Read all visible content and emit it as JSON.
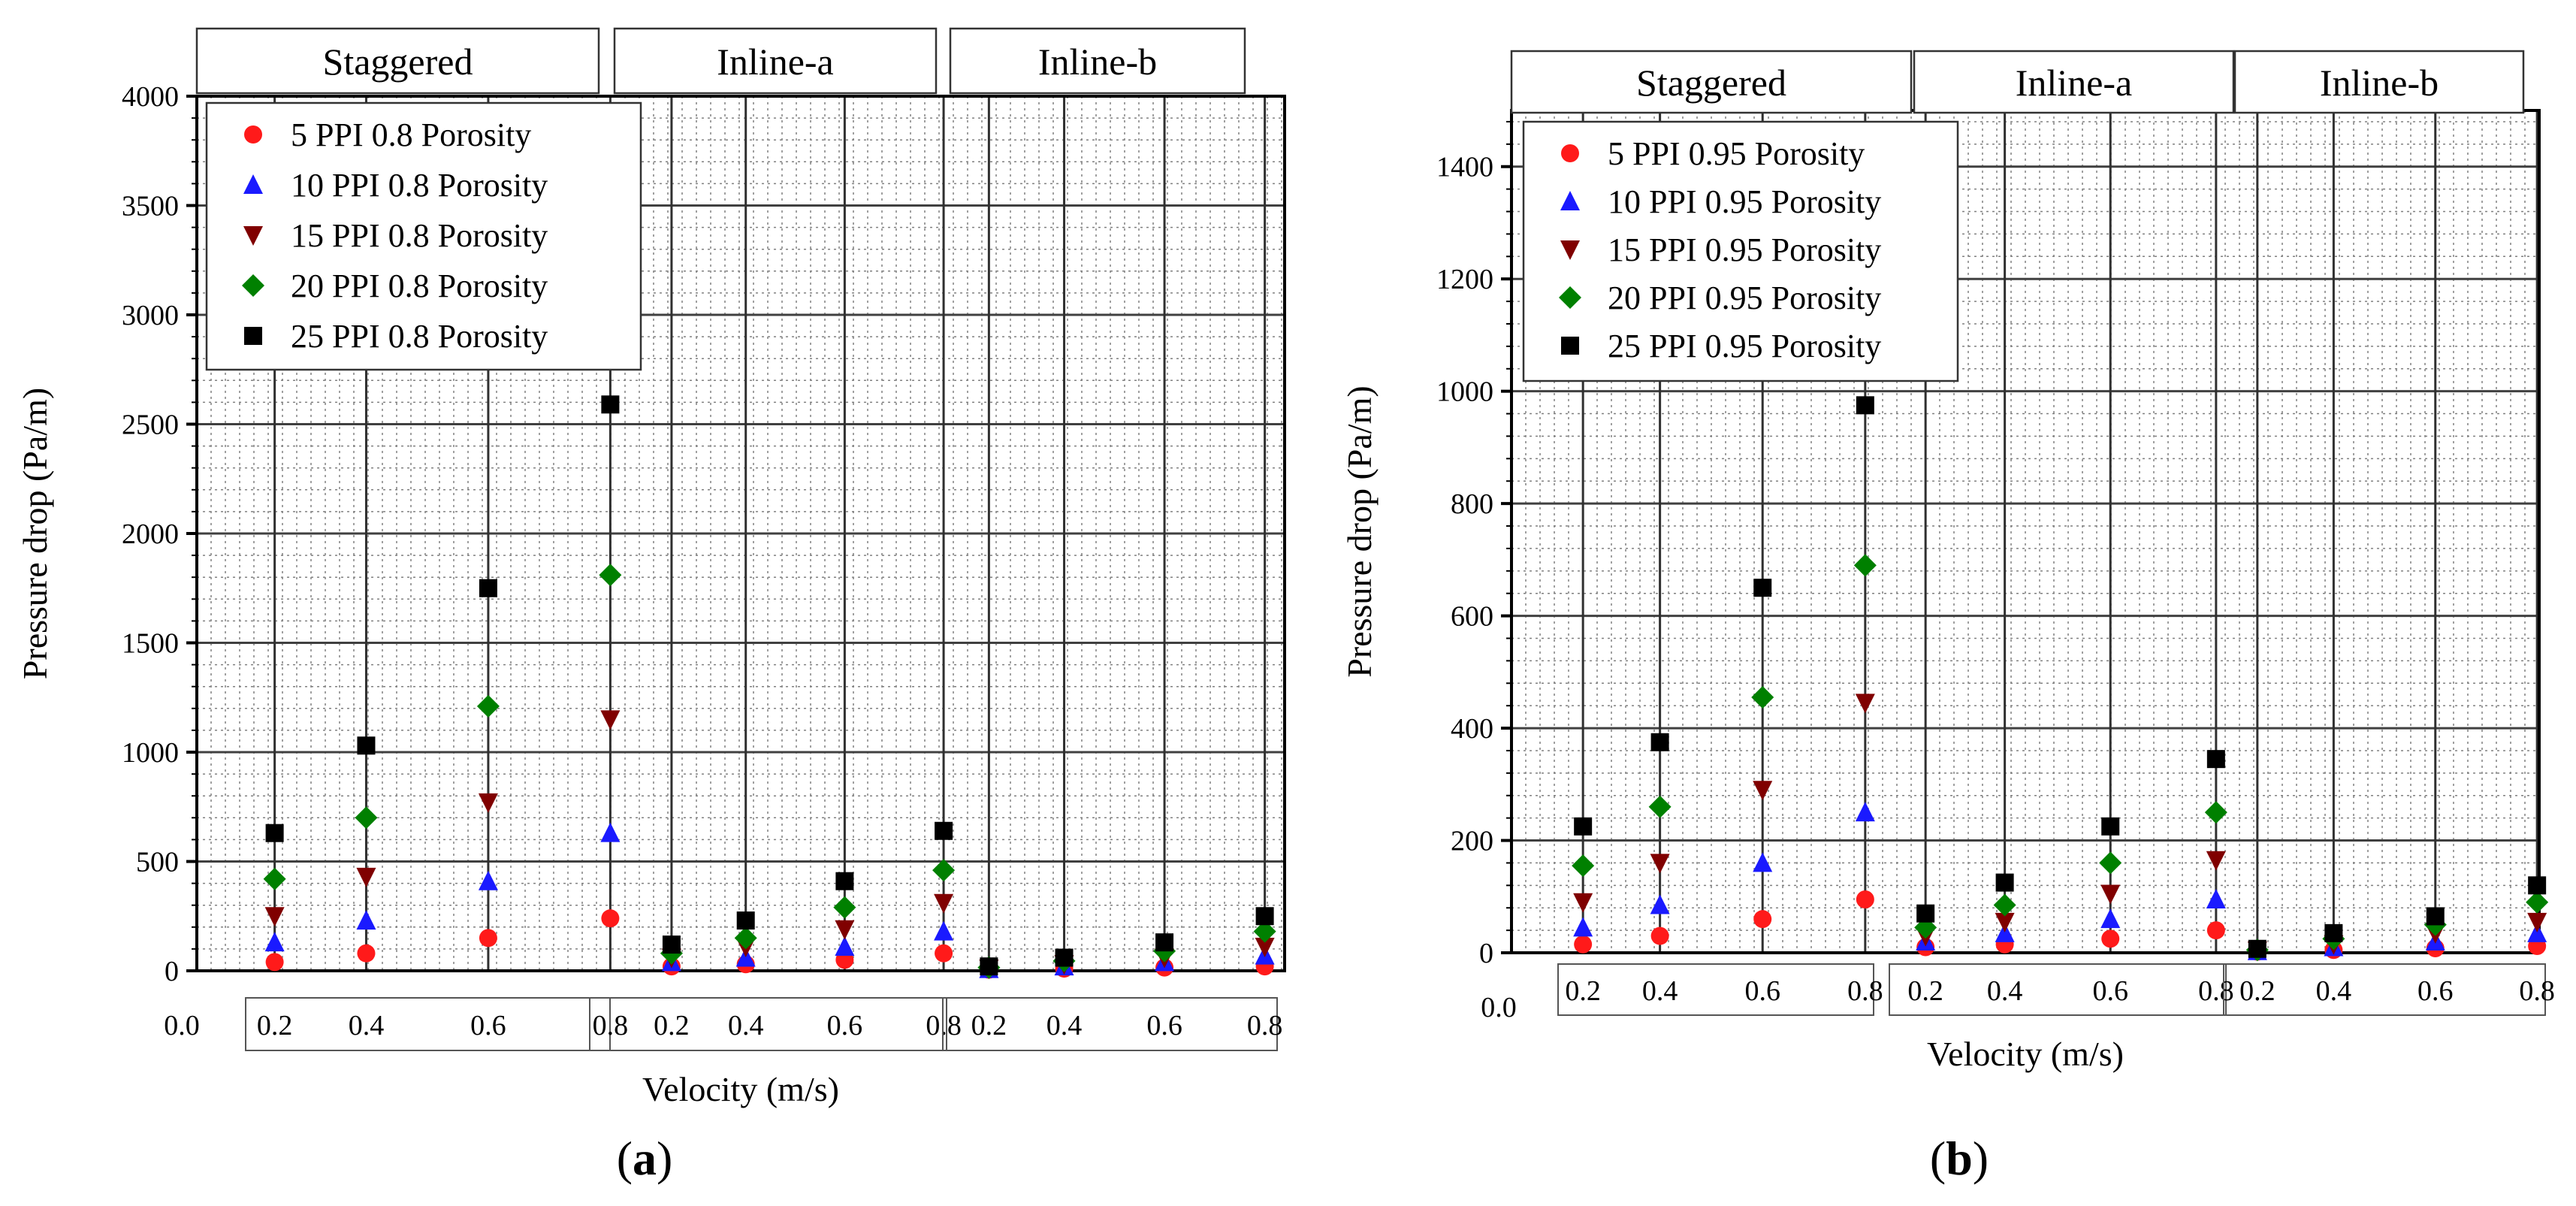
{
  "chart_data": [
    {
      "type": "scatter",
      "panel_label": "a",
      "xlabel": "Velocity (m/s)",
      "ylabel": "Pressure drop (Pa/m)",
      "ylim": [
        0,
        4000
      ],
      "y_ticks": [
        0,
        500,
        1000,
        1500,
        2000,
        2500,
        3000,
        3500,
        4000
      ],
      "x_origin_label": "0.0",
      "groups": [
        "Staggered",
        "Inline-a",
        "Inline-b"
      ],
      "categories": [
        "0.2",
        "0.4",
        "0.6",
        "0.8"
      ],
      "x": [
        0.25,
        0.4,
        0.6,
        0.8
      ],
      "grid": true,
      "legend_position": "top-left",
      "series": [
        {
          "name": "5  PPI 0.8  Porosity",
          "marker": "circle",
          "color": "#ff1a1a",
          "values": [
            [
              40,
              80,
              150,
              240
            ],
            [
              20,
              30,
              50,
              80
            ],
            [
              5,
              10,
              15,
              20
            ]
          ]
        },
        {
          "name": "10 PPI 0.8 Porosity",
          "marker": "triangle-up",
          "color": "#1a1aff",
          "values": [
            [
              130,
              230,
              410,
              630
            ],
            [
              40,
              60,
              110,
              180
            ],
            [
              8,
              20,
              40,
              70
            ]
          ]
        },
        {
          "name": "15 PPI 0.8 Porosity",
          "marker": "triangle-down",
          "color": "#800000",
          "values": [
            [
              250,
              430,
              770,
              1150
            ],
            [
              60,
              110,
              190,
              310
            ],
            [
              10,
              30,
              60,
              110
            ]
          ]
        },
        {
          "name": "20 PPI 0.8 Porosity",
          "marker": "diamond",
          "color": "#008000",
          "values": [
            [
              420,
              700,
              1210,
              1810
            ],
            [
              80,
              150,
              290,
              460
            ],
            [
              15,
              45,
              90,
              180
            ]
          ]
        },
        {
          "name": "25 PPI 0.8 Porosity",
          "marker": "square",
          "color": "#000000",
          "values": [
            [
              630,
              1030,
              1750,
              2590
            ],
            [
              120,
              230,
              410,
              640
            ],
            [
              20,
              60,
              130,
              250
            ]
          ]
        }
      ]
    },
    {
      "type": "scatter",
      "panel_label": "b",
      "xlabel": "Velocity (m/s)",
      "ylabel": "Pressure drop (Pa/m)",
      "ylim": [
        0,
        1500
      ],
      "y_ticks": [
        0,
        200,
        400,
        600,
        800,
        1000,
        1200,
        1400
      ],
      "x_origin_label": "0.0",
      "groups": [
        "Staggered",
        "Inline-a",
        "Inline-b"
      ],
      "categories": [
        "0.2",
        "0.4",
        "0.6",
        "0.8"
      ],
      "x": [
        0.25,
        0.4,
        0.6,
        0.8
      ],
      "grid": true,
      "legend_position": "top-left",
      "series": [
        {
          "name": "5  PPI 0.95  Porosity",
          "marker": "circle",
          "color": "#ff1a1a",
          "values": [
            [
              15,
              30,
              60,
              95
            ],
            [
              10,
              15,
              25,
              40
            ],
            [
              2,
              5,
              8,
              12
            ]
          ]
        },
        {
          "name": "10 PPI 0.95 Porosity",
          "marker": "triangle-up",
          "color": "#1a1aff",
          "values": [
            [
              45,
              85,
              160,
              250
            ],
            [
              20,
              35,
              60,
              95
            ],
            [
              3,
              10,
              20,
              35
            ]
          ]
        },
        {
          "name": "15 PPI 0.95 Porosity",
          "marker": "triangle-down",
          "color": "#800000",
          "values": [
            [
              90,
              160,
              290,
              445
            ],
            [
              30,
              55,
              105,
              165
            ],
            [
              4,
              15,
              35,
              55
            ]
          ]
        },
        {
          "name": "20 PPI 0.95 Porosity",
          "marker": "diamond",
          "color": "#008000",
          "values": [
            [
              155,
              260,
              455,
              690
            ],
            [
              45,
              85,
              160,
              250
            ],
            [
              5,
              25,
              50,
              90
            ]
          ]
        },
        {
          "name": "25 PPI 0.95 Porosity",
          "marker": "square",
          "color": "#000000",
          "values": [
            [
              225,
              375,
              650,
              975
            ],
            [
              70,
              125,
              225,
              345
            ],
            [
              7,
              35,
              65,
              120
            ]
          ]
        }
      ]
    }
  ]
}
